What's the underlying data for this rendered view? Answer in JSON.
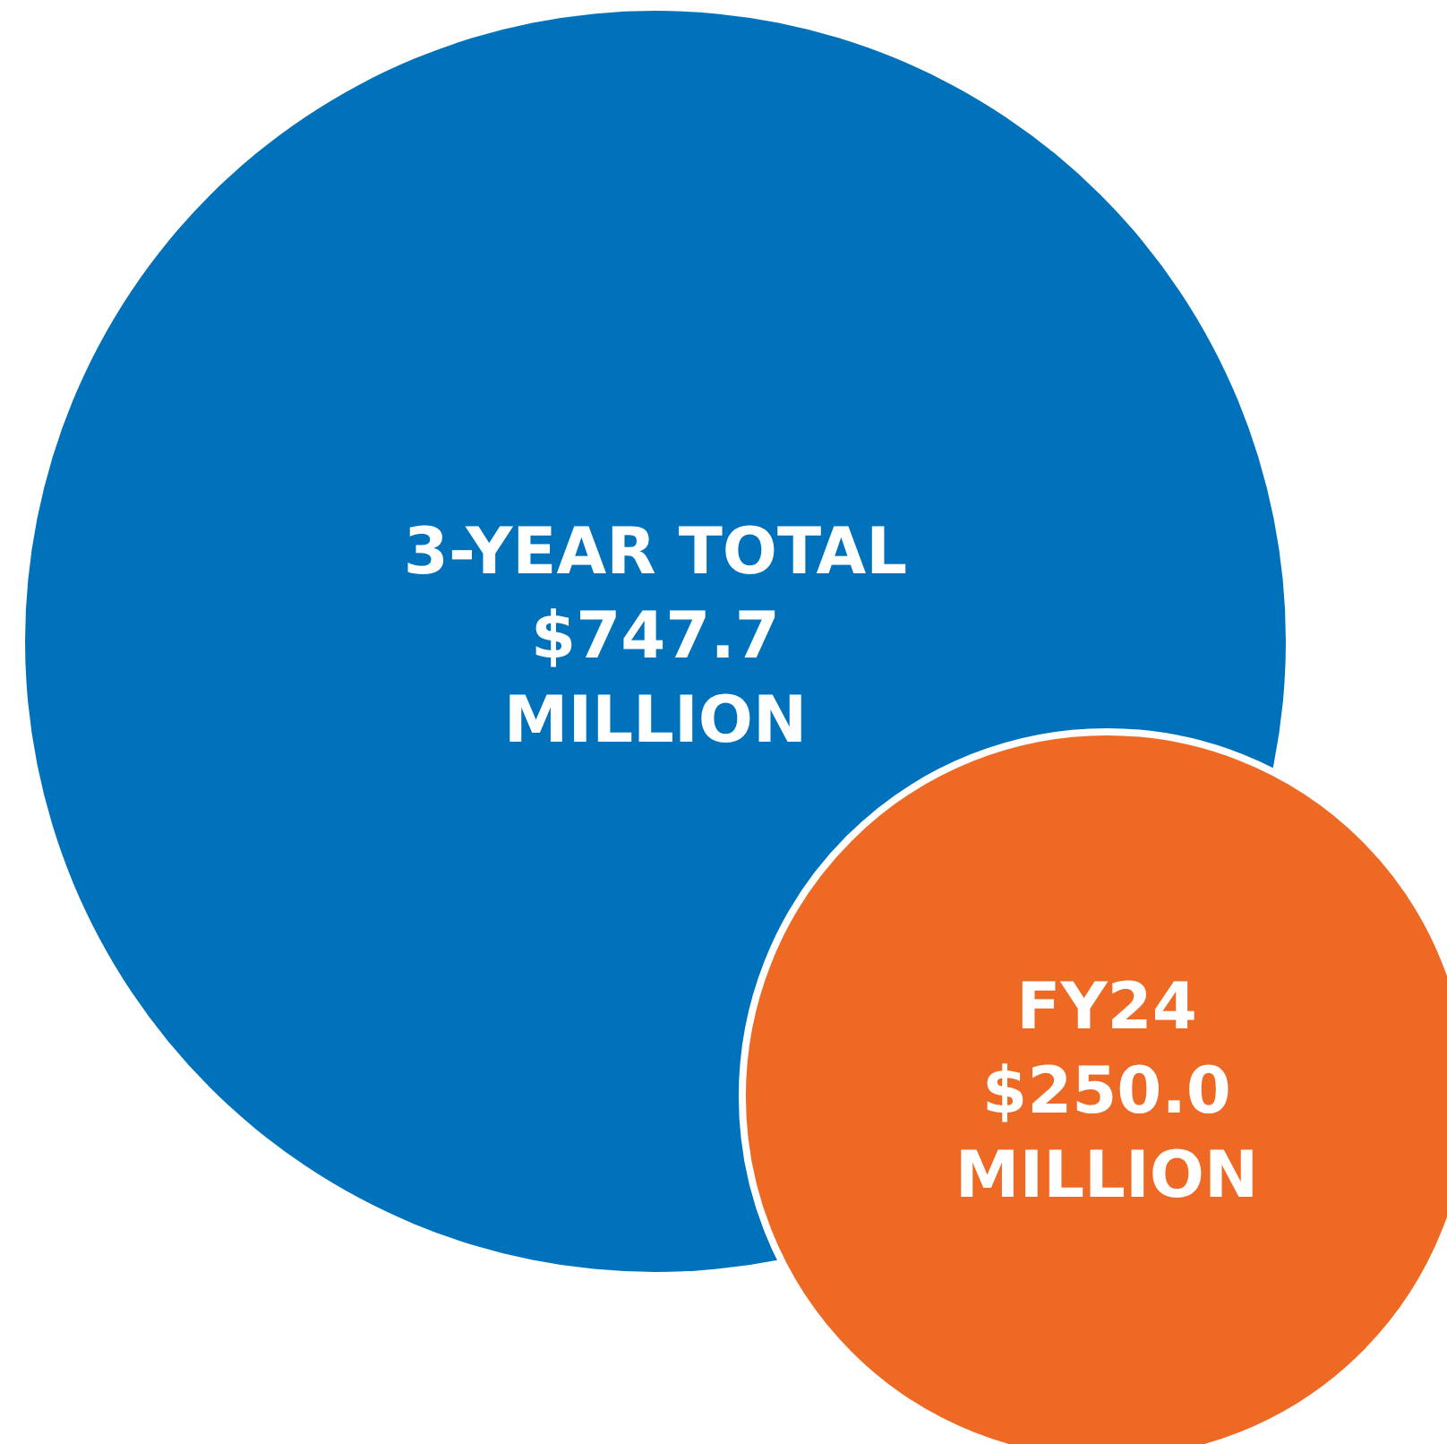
{
  "chart_data": {
    "type": "other",
    "categories": [
      "3-YEAR TOTAL",
      "FY24"
    ],
    "values": [
      747.7,
      250.0
    ],
    "value_labels": [
      "$747.7\nMILLION",
      "$250.0\nMILLION"
    ],
    "colors": [
      "#0072bc",
      "#ee6a24"
    ]
  }
}
